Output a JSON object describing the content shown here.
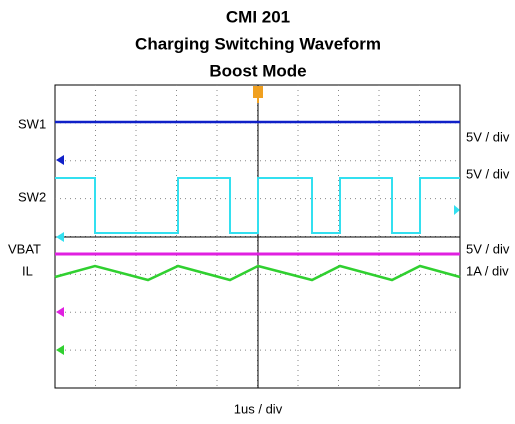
{
  "title_lines": [
    "CMI 201",
    "Charging Switching Waveform",
    "Boost Mode"
  ],
  "channels": [
    {
      "label": "SW1",
      "scale": "5V / div"
    },
    {
      "label": "SW2",
      "scale": "5V / div"
    },
    {
      "label": "VBAT",
      "scale": "5V / div"
    },
    {
      "label": "IL",
      "scale": "1A / div"
    }
  ],
  "time_scale": "1us / div"
}
